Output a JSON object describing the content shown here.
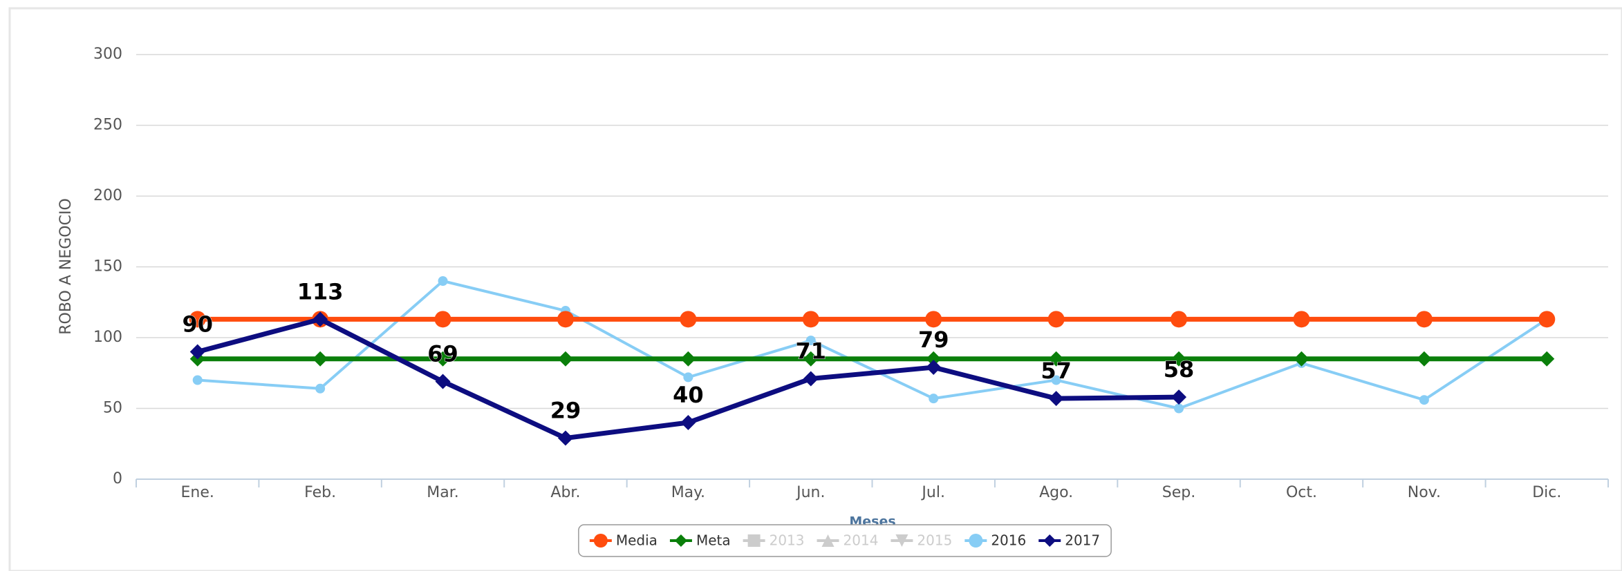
{
  "chart_data": {
    "type": "line",
    "y_label": "ROBO A NEGOCIO",
    "x_label": "Meses",
    "categories": [
      "Ene.",
      "Feb.",
      "Mar.",
      "Abr.",
      "May.",
      "Jun.",
      "Jul.",
      "Ago.",
      "Sep.",
      "Oct.",
      "Nov.",
      "Dic."
    ],
    "series": [
      {
        "name": "Media",
        "color": "#ff4c0e",
        "marker": "circle",
        "visible": true,
        "values": [
          113,
          113,
          113,
          113,
          113,
          113,
          113,
          113,
          113,
          113,
          113,
          113
        ]
      },
      {
        "name": "Meta",
        "color": "#0a7f0a",
        "marker": "diamond",
        "visible": true,
        "values": [
          85,
          85,
          85,
          85,
          85,
          85,
          85,
          85,
          85,
          85,
          85,
          85
        ]
      },
      {
        "name": "2013",
        "color": "#cccccc",
        "marker": "square",
        "visible": false,
        "values": [
          null,
          null,
          null,
          null,
          null,
          null,
          null,
          null,
          null,
          null,
          null,
          null
        ]
      },
      {
        "name": "2014",
        "color": "#cccccc",
        "marker": "triangle",
        "visible": false,
        "values": [
          null,
          null,
          null,
          null,
          null,
          null,
          null,
          null,
          null,
          null,
          null,
          null
        ]
      },
      {
        "name": "2015",
        "color": "#cccccc",
        "marker": "triangle-down",
        "visible": false,
        "values": [
          null,
          null,
          null,
          null,
          null,
          null,
          null,
          null,
          null,
          null,
          null,
          null
        ]
      },
      {
        "name": "2016",
        "color": "#87cdf5",
        "marker": "circle",
        "visible": true,
        "values": [
          70,
          64,
          140,
          119,
          72,
          98,
          57,
          70,
          50,
          82,
          56,
          113
        ]
      },
      {
        "name": "2017",
        "color": "#0d0d80",
        "marker": "diamond",
        "visible": true,
        "data_labels": true,
        "values": [
          90,
          113,
          69,
          29,
          40,
          71,
          79,
          57,
          58,
          null,
          null,
          null
        ]
      }
    ],
    "ylim": [
      0,
      300
    ],
    "yticks": [
      0,
      50,
      100,
      150,
      200,
      250,
      300
    ],
    "grid": true,
    "legend": "bottom"
  }
}
